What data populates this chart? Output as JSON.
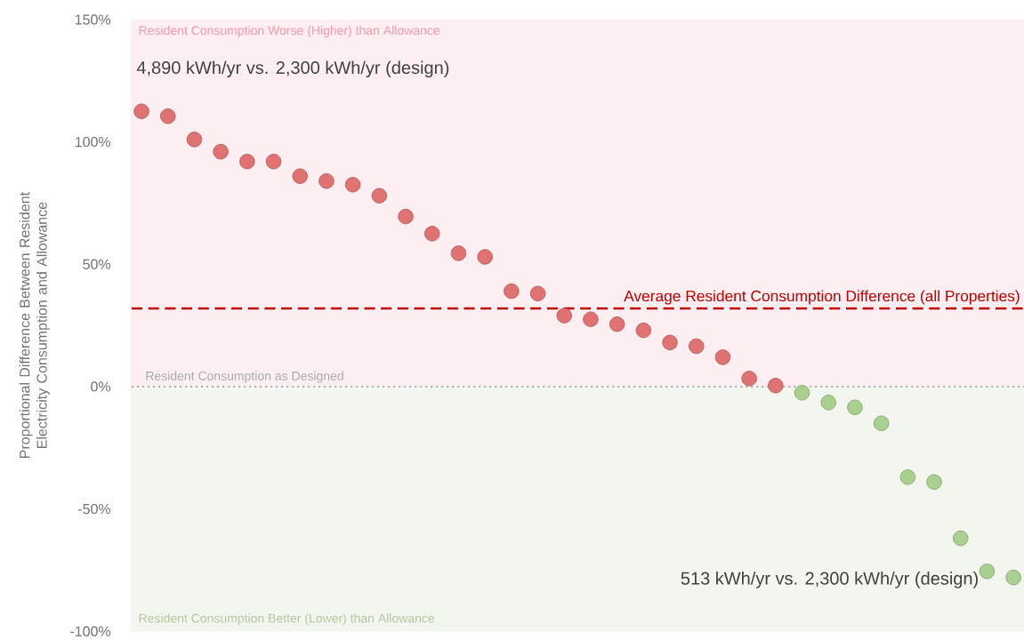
{
  "chart_data": {
    "type": "scatter",
    "ylabel": "Proportional Difference Between Resident Electricity Consumption and Allowance",
    "categories": [
      null,
      null,
      null,
      null,
      null,
      null,
      null,
      null,
      null,
      null,
      null,
      null,
      null,
      null,
      null,
      null,
      null,
      null,
      null,
      null,
      null,
      null,
      null,
      null,
      null,
      null,
      null,
      null,
      null,
      null,
      null,
      null,
      null,
      null
    ],
    "values": [
      112.5,
      110.5,
      101,
      96,
      92,
      92,
      86,
      84,
      82.5,
      78,
      69.5,
      62.5,
      54.5,
      53,
      39,
      38,
      29,
      27.5,
      25.5,
      23,
      18,
      16.5,
      12,
      3.3,
      0.4,
      -2.5,
      -6.5,
      -8.5,
      -15,
      -37,
      -39,
      -62,
      -75.5,
      -78
    ],
    "colors": [
      "#e07272",
      "#e07272",
      "#e07272",
      "#e07272",
      "#e07272",
      "#e07272",
      "#e07272",
      "#e07272",
      "#e07272",
      "#e07272",
      "#e07272",
      "#e07272",
      "#e07272",
      "#e07272",
      "#e07272",
      "#e07272",
      "#e07272",
      "#e07272",
      "#e07272",
      "#e07272",
      "#e07272",
      "#e07272",
      "#e07272",
      "#e07272",
      "#e07272",
      "#a9d08e",
      "#a9d08e",
      "#a9d08e",
      "#a9d08e",
      "#a9d08e",
      "#a9d08e",
      "#a9d08e",
      "#a9d08e",
      "#a9d08e"
    ],
    "ylim": [
      -100,
      150
    ],
    "yticks": [
      {
        "value": -100,
        "label": "-100%"
      },
      {
        "value": -50,
        "label": "-50%"
      },
      {
        "value": 0,
        "label": "0%"
      },
      {
        "value": 50,
        "label": "50%"
      },
      {
        "value": 100,
        "label": "100%"
      },
      {
        "value": 150,
        "label": "150%"
      }
    ],
    "marker": "circle",
    "bands": [
      {
        "axis": "y",
        "from": 0,
        "to": 150,
        "label": "Resident Consumption Worse (Higher) than Allowance",
        "color": "#fdeef1"
      },
      {
        "axis": "y",
        "from": -100,
        "to": 0,
        "label": "Resident Consumption Better (Lower) than Allowance",
        "color": "#f2f6ef"
      }
    ],
    "ref_lines": [
      {
        "axis": "y",
        "value": 32,
        "label": "Average Resident Consumption Difference (all Properties)",
        "color": "#c00000",
        "line_style": "dashed"
      },
      {
        "axis": "y",
        "value": 0,
        "label": "Resident Consumption as Designed",
        "color": "#aaaaaa",
        "line_style": "dotted"
      }
    ],
    "annotations": [
      "4,890 kWh/yr vs. 2,300 kWh/yr (design)",
      "513 kWh/yr vs. 2,300 kWh/yr (design)"
    ]
  }
}
